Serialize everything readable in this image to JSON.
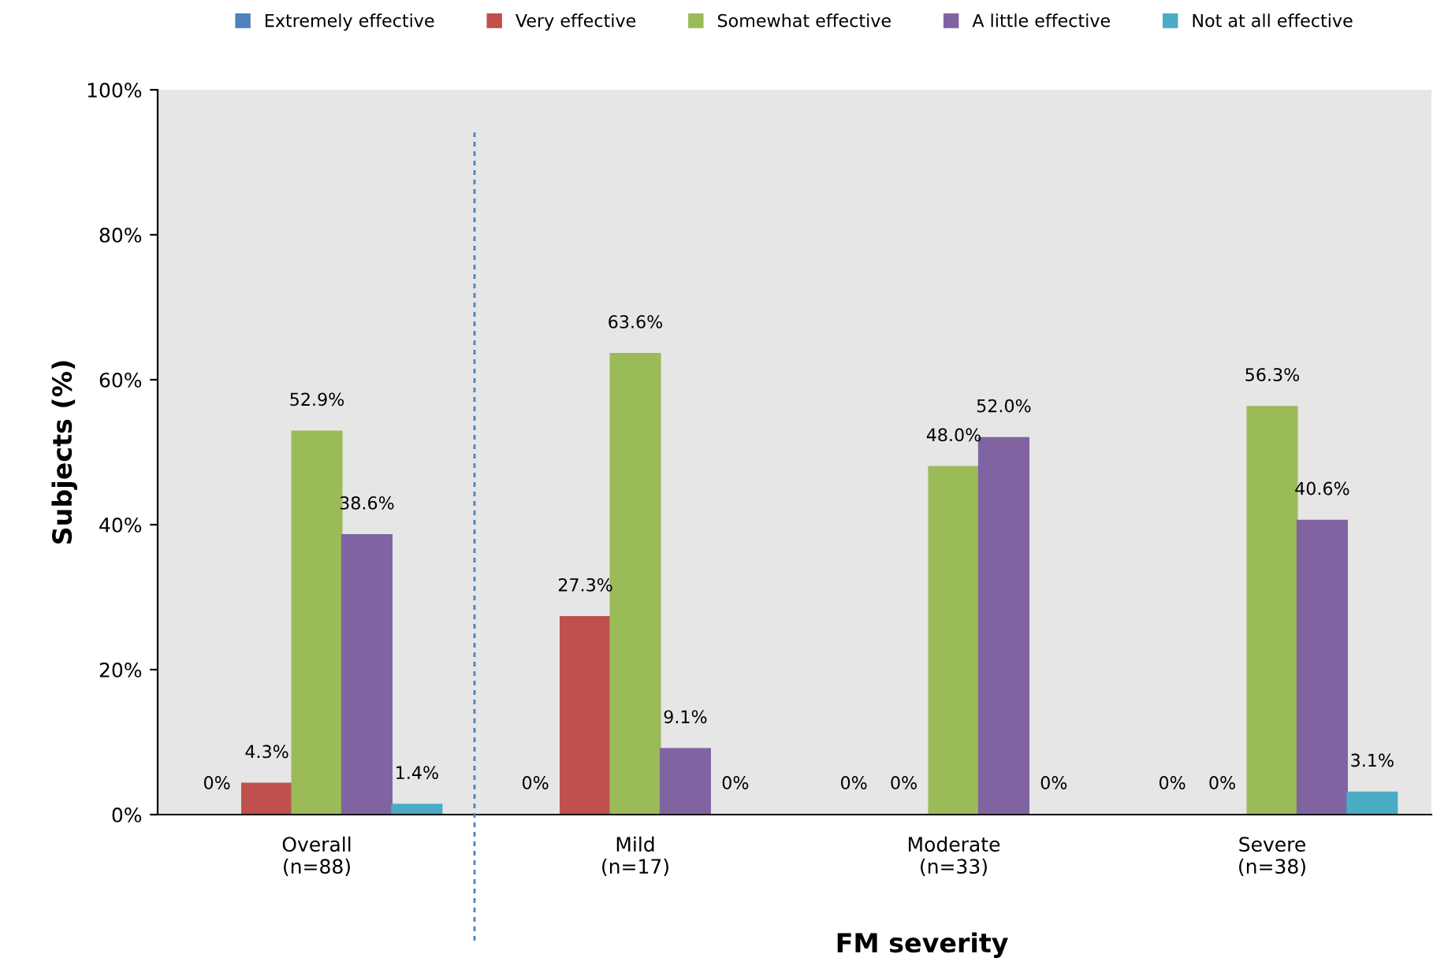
{
  "chart_data": {
    "type": "bar",
    "xlabel": "FM severity",
    "ylabel": "Subjects (%)",
    "categories": [
      "Overall\n(n=88)",
      "Mild\n(n=17)",
      "Moderate\n(n=33)",
      "Severe\n(n=38)"
    ],
    "series": [
      {
        "name": "Extremely effective",
        "color": "#4f81bd",
        "values": [
          0,
          0,
          0,
          0
        ],
        "value_labels": [
          "0%",
          "0%",
          "0%",
          "0%"
        ]
      },
      {
        "name": "Very effective",
        "color": "#c0504d",
        "values": [
          4.3,
          27.3,
          0,
          0
        ],
        "value_labels": [
          "4.3%",
          "27.3%",
          "0%",
          "0%"
        ]
      },
      {
        "name": "Somewhat effective",
        "color": "#9bbb59",
        "values": [
          52.9,
          63.6,
          48.0,
          56.3
        ],
        "value_labels": [
          "52.9%",
          "63.6%",
          "48.0%",
          "56.3%"
        ]
      },
      {
        "name": "A little effective",
        "color": "#8064a2",
        "values": [
          38.6,
          9.1,
          52.0,
          40.6
        ],
        "value_labels": [
          "38.6%",
          "9.1%",
          "52.0%",
          "40.6%"
        ]
      },
      {
        "name": "Not at all effective",
        "color": "#4bacc6",
        "values": [
          1.4,
          0,
          0,
          3.1
        ],
        "value_labels": [
          "1.4%",
          "0%",
          "0%",
          "3.1%"
        ]
      }
    ],
    "ylim": [
      0,
      100
    ],
    "yticks": [
      {
        "value": 0,
        "label": "0%"
      },
      {
        "value": 20,
        "label": "20%"
      },
      {
        "value": 40,
        "label": "40%"
      },
      {
        "value": 60,
        "label": "60%"
      },
      {
        "value": 80,
        "label": "80%"
      },
      {
        "value": 100,
        "label": "100%"
      }
    ],
    "grid": false,
    "legend": "top"
  }
}
